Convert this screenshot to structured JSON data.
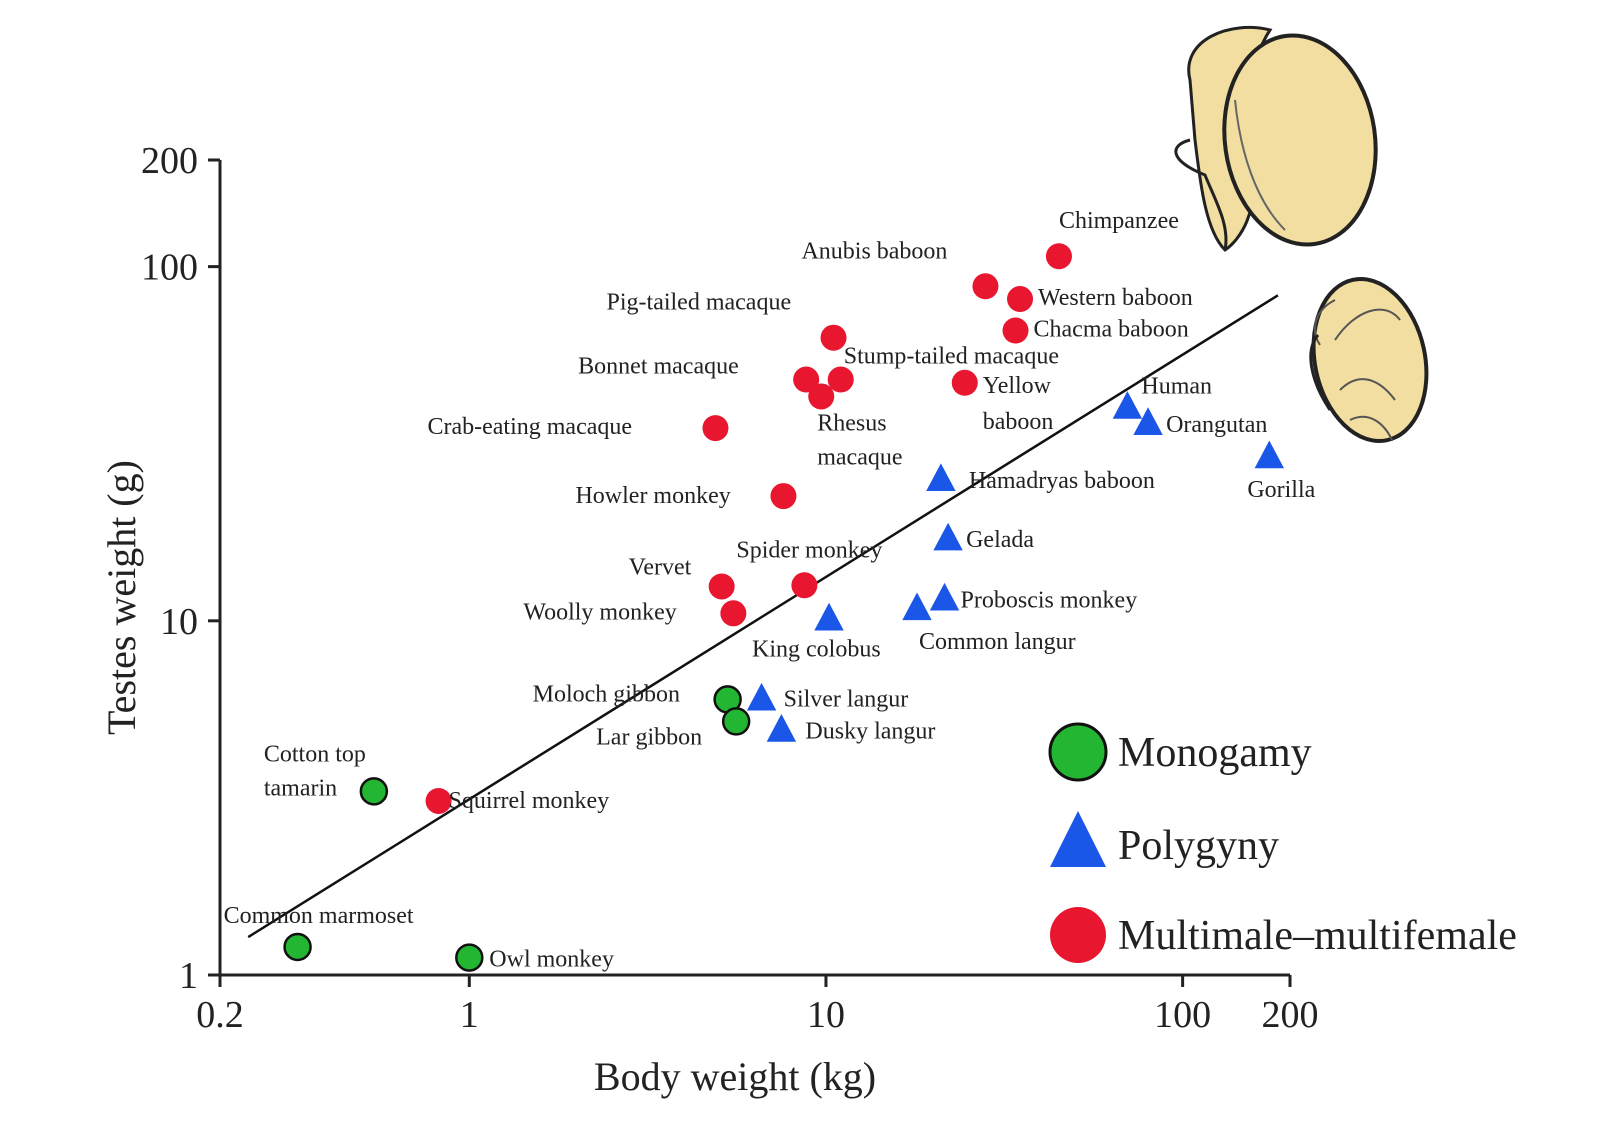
{
  "chart_data": {
    "type": "scatter",
    "title": "",
    "xlabel": "Body weight (kg)",
    "ylabel": "Testes weight (g)",
    "xscale": "log",
    "yscale": "log",
    "xlim": [
      0.2,
      200
    ],
    "ylim": [
      1,
      200
    ],
    "xticks": [
      {
        "value": 0.2,
        "label": "0.2"
      },
      {
        "value": 1,
        "label": "1"
      },
      {
        "value": 10,
        "label": "10"
      },
      {
        "value": 100,
        "label": "100"
      },
      {
        "value": 200,
        "label": "200"
      }
    ],
    "yticks": [
      {
        "value": 1,
        "label": "1"
      },
      {
        "value": 10,
        "label": "10"
      },
      {
        "value": 100,
        "label": "100"
      },
      {
        "value": 200,
        "label": "200"
      }
    ],
    "legend_position": "bottom-right",
    "series": [
      {
        "name": "Monogamy",
        "marker": "circle",
        "color": "#22b633",
        "points": [
          {
            "label": "Cotton top tamarin",
            "x": 0.54,
            "y": 3.3
          },
          {
            "label": "Common marmoset",
            "x": 0.33,
            "y": 1.2
          },
          {
            "label": "Owl monkey",
            "x": 1.0,
            "y": 1.12
          },
          {
            "label": "Moloch gibbon",
            "x": 5.3,
            "y": 6.0
          },
          {
            "label": "Lar gibbon",
            "x": 5.6,
            "y": 5.2
          }
        ]
      },
      {
        "name": "Polygyny",
        "marker": "triangle",
        "color": "#1a56e8",
        "points": [
          {
            "label": "Human",
            "x": 70,
            "y": 40
          },
          {
            "label": "Orangutan",
            "x": 80,
            "y": 36
          },
          {
            "label": "Gorilla",
            "x": 175,
            "y": 29
          },
          {
            "label": "Hamadryas baboon",
            "x": 21,
            "y": 25
          },
          {
            "label": "Gelada",
            "x": 22,
            "y": 17
          },
          {
            "label": "Proboscis monkey",
            "x": 21.5,
            "y": 11.5
          },
          {
            "label": "Common langur",
            "x": 18,
            "y": 10.8
          },
          {
            "label": "King colobus",
            "x": 10.2,
            "y": 10.1
          },
          {
            "label": "Silver langur",
            "x": 6.6,
            "y": 6.0
          },
          {
            "label": "Dusky langur",
            "x": 7.5,
            "y": 4.9
          }
        ]
      },
      {
        "name": "Multimale–multifemale",
        "marker": "circle",
        "color": "#e8162f",
        "points": [
          {
            "label": "Chimpanzee",
            "x": 45,
            "y": 107
          },
          {
            "label": "Anubis baboon",
            "x": 28,
            "y": 88
          },
          {
            "label": "Western baboon",
            "x": 35,
            "y": 81
          },
          {
            "label": "Chacma baboon",
            "x": 34,
            "y": 66
          },
          {
            "label": "Yellow baboon",
            "x": 24.5,
            "y": 47
          },
          {
            "label": "Pig-tailed macaque",
            "x": 10.5,
            "y": 63
          },
          {
            "label": "Bonnet macaque",
            "x": 8.8,
            "y": 48
          },
          {
            "label": "Stump-tailed macaque",
            "x": 11.0,
            "y": 48
          },
          {
            "label": "Rhesus macaque",
            "x": 9.7,
            "y": 43
          },
          {
            "label": "Crab-eating macaque",
            "x": 4.9,
            "y": 35
          },
          {
            "label": "Howler monkey",
            "x": 7.6,
            "y": 22.5
          },
          {
            "label": "Spider monkey",
            "x": 8.7,
            "y": 12.6
          },
          {
            "label": "Vervet",
            "x": 5.1,
            "y": 12.5
          },
          {
            "label": "Woolly monkey",
            "x": 5.5,
            "y": 10.5
          },
          {
            "label": "Squirrel monkey",
            "x": 0.82,
            "y": 3.1
          }
        ]
      }
    ],
    "regression_line": {
      "x": [
        0.24,
        185
      ],
      "y": [
        1.28,
        83
      ]
    }
  },
  "point_label_text": {
    "Cotton top tamarin": [
      "Cotton top",
      "tamarin"
    ],
    "Rhesus macaque": [
      "Rhesus",
      "macaque"
    ],
    "Yellow baboon": [
      "Yellow",
      "baboon"
    ]
  },
  "illustrations": [
    "large-testis-illustration",
    "small-testis-illustration"
  ]
}
